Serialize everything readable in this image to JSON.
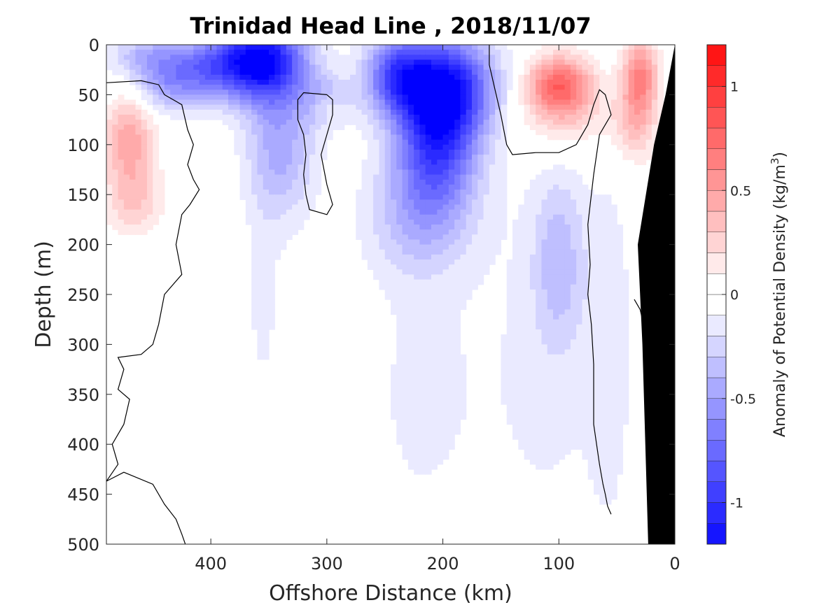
{
  "chart_data": {
    "type": "heatmap",
    "title": "Trinidad Head Line , 2018/11/07",
    "xlabel": "Offshore Distance (km)",
    "ylabel": "Depth (m)",
    "xlim": [
      490,
      0
    ],
    "ylim": [
      0,
      500
    ],
    "x_reversed": true,
    "y_reversed": true,
    "xticks": [
      400,
      300,
      200,
      100,
      0
    ],
    "yticks": [
      0,
      50,
      100,
      150,
      200,
      250,
      300,
      350,
      400,
      450,
      500
    ],
    "grid": false,
    "colorbar": {
      "label": "Anomaly of Potential Density (kg/m",
      "label_superscript": "3",
      "label_suffix": ")",
      "range": [
        -1.2,
        1.2
      ],
      "step": 0.1,
      "ticks": [
        -1,
        -0.5,
        0,
        0.5,
        1
      ],
      "tick_labels": [
        "-1",
        "-0.5",
        "0",
        "0.5",
        "1"
      ],
      "neg_color": "#0000ff",
      "pos_color": "#ff0000",
      "zero_color": "#ffffff"
    },
    "contour_level": 0,
    "colors": {
      "bathymetry": "#000000",
      "contour": "#000000",
      "axis": "#262626"
    },
    "anomalies": [
      {
        "x": 355,
        "depth": 15,
        "value": -1.05,
        "rx": 38,
        "rd": 42
      },
      {
        "x": 400,
        "depth": 20,
        "value": -0.55,
        "rx": 45,
        "rd": 30
      },
      {
        "x": 340,
        "depth": 100,
        "value": -0.45,
        "rx": 30,
        "rd": 75
      },
      {
        "x": 355,
        "depth": 270,
        "value": -0.12,
        "rx": 18,
        "rd": 110
      },
      {
        "x": 195,
        "depth": 40,
        "value": -0.95,
        "rx": 40,
        "rd": 50
      },
      {
        "x": 205,
        "depth": 95,
        "value": -0.85,
        "rx": 35,
        "rd": 65
      },
      {
        "x": 240,
        "depth": 30,
        "value": -0.75,
        "rx": 28,
        "rd": 40
      },
      {
        "x": 220,
        "depth": 170,
        "value": -0.35,
        "rx": 45,
        "rd": 60
      },
      {
        "x": 220,
        "depth": 350,
        "value": -0.12,
        "rx": 55,
        "rd": 170
      },
      {
        "x": 440,
        "depth": 40,
        "value": -0.4,
        "rx": 40,
        "rd": 30
      },
      {
        "x": 460,
        "depth": 10,
        "value": -0.3,
        "rx": 30,
        "rd": 20
      },
      {
        "x": 300,
        "depth": 55,
        "value": -0.3,
        "rx": 22,
        "rd": 25
      },
      {
        "x": 100,
        "depth": 215,
        "value": -0.3,
        "rx": 22,
        "rd": 85
      },
      {
        "x": 110,
        "depth": 320,
        "value": -0.12,
        "rx": 60,
        "rd": 230
      },
      {
        "x": 55,
        "depth": 300,
        "value": -0.12,
        "rx": 20,
        "rd": 200
      },
      {
        "x": 470,
        "depth": 95,
        "value": 0.48,
        "rx": 22,
        "rd": 60
      },
      {
        "x": 465,
        "depth": 160,
        "value": 0.2,
        "rx": 25,
        "rd": 30
      },
      {
        "x": 100,
        "depth": 40,
        "value": 0.7,
        "rx": 28,
        "rd": 30
      },
      {
        "x": 95,
        "depth": 70,
        "value": 0.25,
        "rx": 40,
        "rd": 40
      },
      {
        "x": 30,
        "depth": 30,
        "value": 0.6,
        "rx": 15,
        "rd": 40
      },
      {
        "x": 35,
        "depth": 80,
        "value": 0.3,
        "rx": 20,
        "rd": 40
      },
      {
        "x": 300,
        "depth": 60,
        "value": 0.2,
        "rx": 12,
        "rd": 12
      }
    ],
    "zero_contours": [
      [
        [
          490,
          38
        ],
        [
          460,
          36
        ],
        [
          445,
          40
        ],
        [
          440,
          50
        ],
        [
          425,
          60
        ],
        [
          420,
          85
        ],
        [
          415,
          100
        ],
        [
          420,
          120
        ],
        [
          415,
          135
        ],
        [
          410,
          145
        ],
        [
          418,
          160
        ],
        [
          425,
          170
        ],
        [
          430,
          200
        ],
        [
          425,
          230
        ],
        [
          440,
          250
        ],
        [
          445,
          280
        ],
        [
          450,
          300
        ],
        [
          460,
          310
        ],
        [
          480,
          313
        ],
        [
          475,
          325
        ],
        [
          480,
          345
        ],
        [
          470,
          355
        ],
        [
          475,
          380
        ],
        [
          485,
          400
        ],
        [
          480,
          420
        ],
        [
          490,
          437
        ]
      ],
      [
        [
          490,
          437
        ],
        [
          475,
          428
        ],
        [
          450,
          440
        ],
        [
          440,
          460
        ],
        [
          430,
          475
        ],
        [
          425,
          490
        ],
        [
          422,
          500
        ]
      ],
      [
        [
          300,
          50
        ],
        [
          320,
          48
        ],
        [
          325,
          55
        ],
        [
          325,
          75
        ],
        [
          320,
          90
        ],
        [
          318,
          110
        ],
        [
          320,
          130
        ],
        [
          318,
          150
        ],
        [
          315,
          165
        ],
        [
          300,
          170
        ],
        [
          295,
          160
        ],
        [
          300,
          140
        ],
        [
          305,
          110
        ],
        [
          300,
          90
        ],
        [
          295,
          70
        ],
        [
          295,
          55
        ],
        [
          300,
          50
        ]
      ],
      [
        [
          160,
          0
        ],
        [
          160,
          20
        ],
        [
          155,
          45
        ],
        [
          150,
          70
        ],
        [
          145,
          100
        ],
        [
          140,
          110
        ],
        [
          120,
          108
        ],
        [
          100,
          108
        ],
        [
          85,
          100
        ],
        [
          75,
          80
        ],
        [
          70,
          60
        ],
        [
          65,
          45
        ],
        [
          60,
          50
        ],
        [
          55,
          70
        ],
        [
          65,
          90
        ],
        [
          70,
          130
        ],
        [
          75,
          180
        ],
        [
          73,
          220
        ],
        [
          75,
          250
        ],
        [
          72,
          280
        ],
        [
          70,
          320
        ],
        [
          70,
          380
        ],
        [
          65,
          420
        ],
        [
          62,
          440
        ],
        [
          60,
          450
        ],
        [
          58,
          462
        ],
        [
          55,
          470
        ]
      ],
      [
        [
          35,
          255
        ],
        [
          30,
          265
        ],
        [
          28,
          275
        ],
        [
          25,
          310
        ],
        [
          23,
          330
        ],
        [
          26,
          345
        ],
        [
          24,
          390
        ],
        [
          22,
          420
        ],
        [
          20,
          460
        ]
      ]
    ],
    "bathymetry": [
      [
        0,
        0
      ],
      [
        0,
        500
      ],
      [
        23,
        500
      ],
      [
        25,
        420
      ],
      [
        28,
        300
      ],
      [
        32,
        200
      ],
      [
        18,
        100
      ],
      [
        8,
        50
      ],
      [
        0,
        0
      ]
    ]
  }
}
